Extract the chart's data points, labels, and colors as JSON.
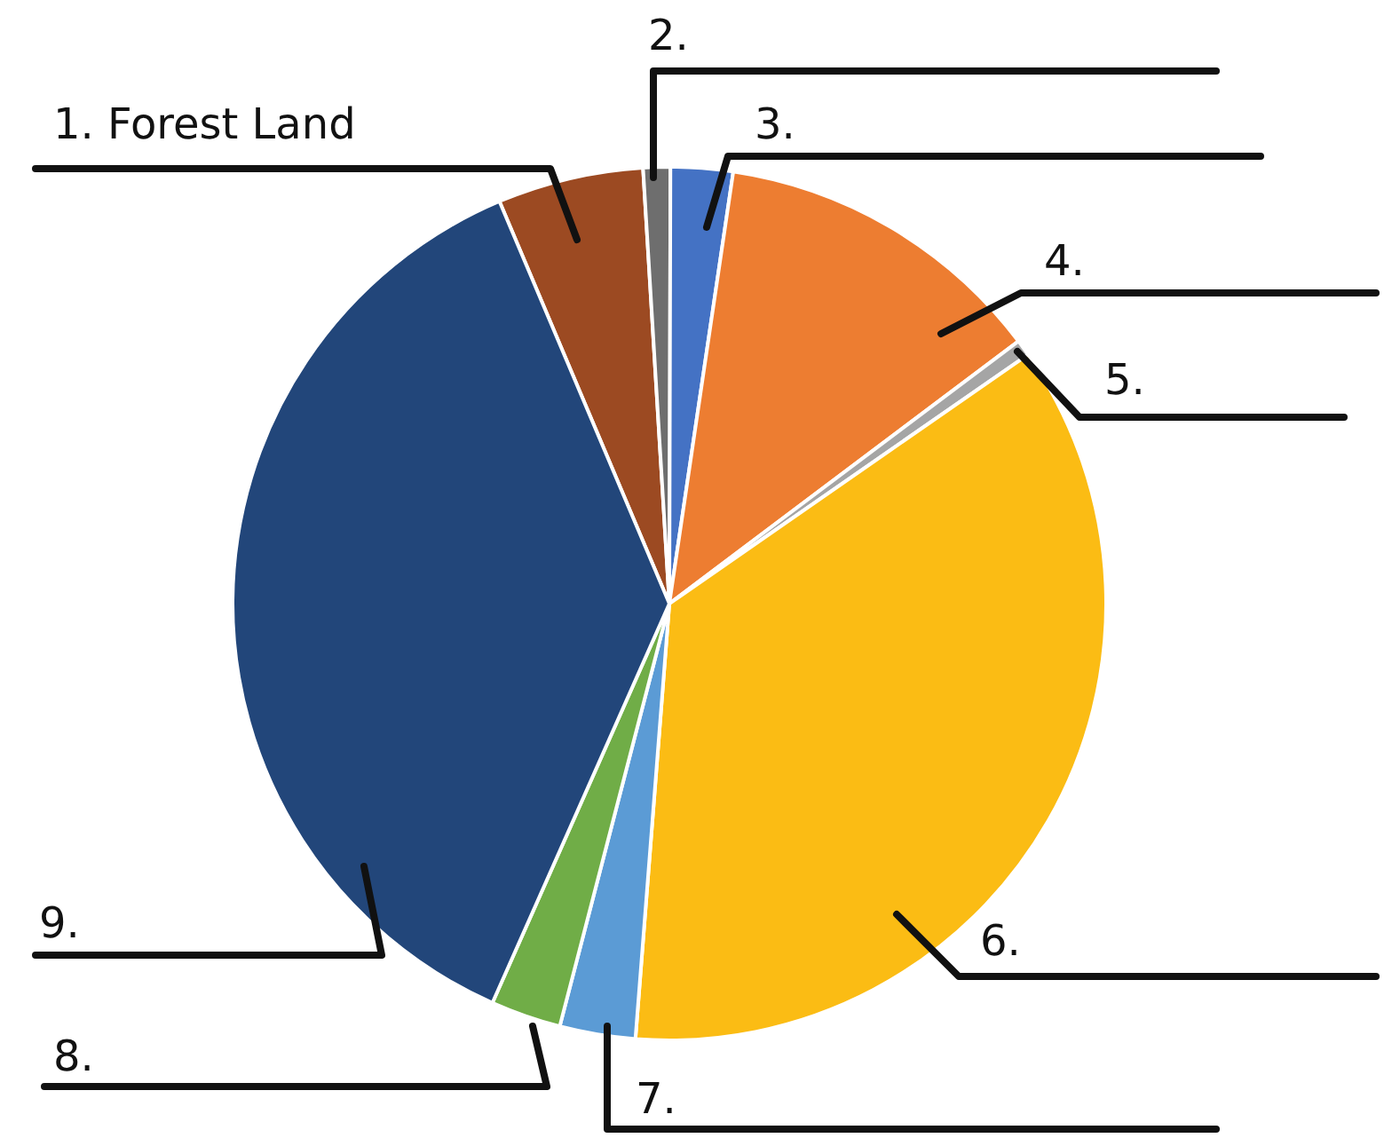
{
  "chart_data": {
    "type": "pie",
    "categories": [
      "1. Forest Land",
      "2.",
      "3.",
      "4.",
      "5.",
      "6.",
      "7.",
      "8.",
      "9."
    ],
    "values": [
      5.4,
      1,
      2.3,
      12.4,
      0.6,
      35.9,
      2.8,
      2.6,
      37
    ],
    "colors": [
      "#9c4a22",
      "#6e6e6e",
      "#4472c4",
      "#ed7d31",
      "#a5a5a5",
      "#fbbc14",
      "#5b9bd5",
      "#70ad47",
      "#22467a"
    ]
  }
}
